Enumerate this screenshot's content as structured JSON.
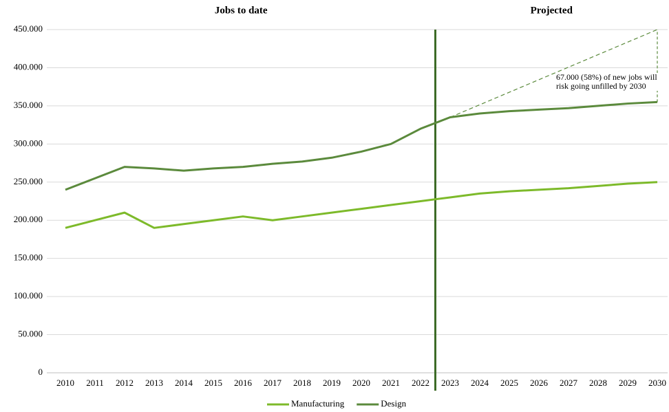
{
  "chart_data": {
    "type": "line",
    "section_titles": [
      "Jobs to date",
      "Projected"
    ],
    "categories": [
      "2010",
      "2011",
      "2012",
      "2013",
      "2014",
      "2015",
      "2016",
      "2017",
      "2018",
      "2019",
      "2020",
      "2021",
      "2022",
      "2023",
      "2024",
      "2025",
      "2026",
      "2027",
      "2028",
      "2029",
      "2030"
    ],
    "series": [
      {
        "name": "Manufacturing",
        "color": "#7dba2a",
        "values": [
          190000,
          200000,
          210000,
          190000,
          195000,
          200000,
          205000,
          200000,
          205000,
          210000,
          215000,
          220000,
          225000,
          230000,
          235000,
          238000,
          240000,
          242000,
          245000,
          248000,
          250000
        ]
      },
      {
        "name": "Design",
        "color": "#5b8a3c",
        "values": [
          240000,
          255000,
          270000,
          268000,
          265000,
          268000,
          270000,
          274000,
          277000,
          282000,
          290000,
          300000,
          320000,
          335000,
          340000,
          343000,
          345000,
          347000,
          350000,
          353000,
          355000
        ]
      }
    ],
    "annotation": "67.000 (58%) of new jobs will risk going unfilled by 2030",
    "projected_demand": 450000,
    "ylim": [
      0,
      450000
    ],
    "yticks": [
      0,
      {
        "value": 50000,
        "label": "50.000"
      },
      {
        "value": 100000,
        "label": "100.000"
      },
      {
        "value": 150000,
        "label": "150.000"
      },
      {
        "value": 200000,
        "label": "200.000"
      },
      {
        "value": 250000,
        "label": "250.000"
      },
      {
        "value": 300000,
        "label": "300.000"
      },
      {
        "value": 350000,
        "label": "350.000"
      },
      {
        "value": 400000,
        "label": "400.000"
      },
      {
        "value": 450000,
        "label": "450.000"
      }
    ],
    "grid": true,
    "legend": "bottom"
  }
}
